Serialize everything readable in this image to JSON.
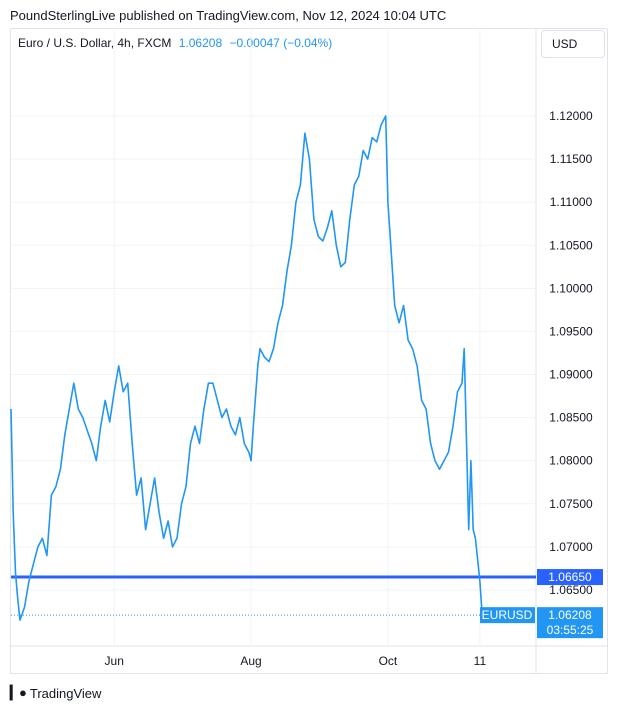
{
  "header": {
    "attribution": "PoundSterlingLive published on TradingView.com, Nov 12, 2024 10:04 UTC"
  },
  "legend": {
    "symbol": "Euro / U.S. Dollar, 4h, FXCM",
    "last": "1.06208",
    "change": "−0.00047 (−0.04%)"
  },
  "currency_button": {
    "label": "USD"
  },
  "footer": {
    "brand": "TradingView"
  },
  "colors": {
    "line": "#2196f3",
    "hline": "#2962ff",
    "grid": "#f0f3fa",
    "axis_text": "#131722"
  },
  "chart_data": {
    "type": "line",
    "symbol": "EURUSD",
    "title": "Euro / U.S. Dollar, 4h, FXCM",
    "ylim": [
      1.0585,
      1.1265
    ],
    "yticks": [
      "1.12000",
      "1.11500",
      "1.11000",
      "1.10500",
      "1.10000",
      "1.09500",
      "1.09000",
      "1.08500",
      "1.08000",
      "1.07500",
      "1.07000",
      "1.06500"
    ],
    "ytick_values": [
      1.12,
      1.115,
      1.11,
      1.105,
      1.1,
      1.095,
      1.09,
      1.085,
      1.08,
      1.075,
      1.07,
      1.065
    ],
    "xtick_labels": [
      {
        "label": "Jun",
        "date": "2024-06-01"
      },
      {
        "label": "Aug",
        "date": "2024-08-01"
      },
      {
        "label": "Oct",
        "date": "2024-10-01"
      },
      {
        "label": "11",
        "date": "2024-11-11"
      }
    ],
    "x_range": [
      "2024-04-16",
      "2024-12-06"
    ],
    "horizontal_line": {
      "value": 1.0665,
      "label": "1.06650"
    },
    "last_price": {
      "value": 1.06208,
      "label": "1.06208",
      "countdown": "03:55:25"
    },
    "series": [
      {
        "values": [
          [
            "2024-04-16",
            1.086
          ],
          [
            "2024-04-17",
            1.074
          ],
          [
            "2024-04-18",
            1.067
          ],
          [
            "2024-04-19",
            1.064
          ],
          [
            "2024-04-20",
            1.0615
          ],
          [
            "2024-04-22",
            1.063
          ],
          [
            "2024-04-24",
            1.066
          ],
          [
            "2024-04-26",
            1.068
          ],
          [
            "2024-04-28",
            1.07
          ],
          [
            "2024-04-30",
            1.071
          ],
          [
            "2024-05-02",
            1.069
          ],
          [
            "2024-05-04",
            1.076
          ],
          [
            "2024-05-06",
            1.077
          ],
          [
            "2024-05-08",
            1.079
          ],
          [
            "2024-05-10",
            1.083
          ],
          [
            "2024-05-12",
            1.086
          ],
          [
            "2024-05-14",
            1.089
          ],
          [
            "2024-05-16",
            1.086
          ],
          [
            "2024-05-18",
            1.085
          ],
          [
            "2024-05-20",
            1.0835
          ],
          [
            "2024-05-22",
            1.082
          ],
          [
            "2024-05-24",
            1.08
          ],
          [
            "2024-05-26",
            1.084
          ],
          [
            "2024-05-28",
            1.087
          ],
          [
            "2024-05-30",
            1.0845
          ],
          [
            "2024-06-01",
            1.088
          ],
          [
            "2024-06-03",
            1.091
          ],
          [
            "2024-06-05",
            1.088
          ],
          [
            "2024-06-07",
            1.089
          ],
          [
            "2024-06-09",
            1.082
          ],
          [
            "2024-06-11",
            1.076
          ],
          [
            "2024-06-13",
            1.078
          ],
          [
            "2024-06-15",
            1.072
          ],
          [
            "2024-06-17",
            1.075
          ],
          [
            "2024-06-19",
            1.078
          ],
          [
            "2024-06-21",
            1.074
          ],
          [
            "2024-06-23",
            1.071
          ],
          [
            "2024-06-25",
            1.073
          ],
          [
            "2024-06-27",
            1.07
          ],
          [
            "2024-06-29",
            1.071
          ],
          [
            "2024-07-01",
            1.075
          ],
          [
            "2024-07-03",
            1.077
          ],
          [
            "2024-07-05",
            1.082
          ],
          [
            "2024-07-07",
            1.084
          ],
          [
            "2024-07-09",
            1.082
          ],
          [
            "2024-07-11",
            1.086
          ],
          [
            "2024-07-13",
            1.089
          ],
          [
            "2024-07-15",
            1.089
          ],
          [
            "2024-07-17",
            1.087
          ],
          [
            "2024-07-19",
            1.085
          ],
          [
            "2024-07-21",
            1.086
          ],
          [
            "2024-07-23",
            1.084
          ],
          [
            "2024-07-25",
            1.083
          ],
          [
            "2024-07-27",
            1.085
          ],
          [
            "2024-07-29",
            1.082
          ],
          [
            "2024-07-31",
            1.081
          ],
          [
            "2024-08-01",
            1.08
          ],
          [
            "2024-08-02",
            1.084
          ],
          [
            "2024-08-04",
            1.091
          ],
          [
            "2024-08-05",
            1.093
          ],
          [
            "2024-08-07",
            1.092
          ],
          [
            "2024-08-09",
            1.0915
          ],
          [
            "2024-08-11",
            1.093
          ],
          [
            "2024-08-13",
            1.096
          ],
          [
            "2024-08-15",
            1.098
          ],
          [
            "2024-08-17",
            1.102
          ],
          [
            "2024-08-19",
            1.105
          ],
          [
            "2024-08-21",
            1.11
          ],
          [
            "2024-08-23",
            1.112
          ],
          [
            "2024-08-25",
            1.118
          ],
          [
            "2024-08-27",
            1.115
          ],
          [
            "2024-08-29",
            1.108
          ],
          [
            "2024-08-31",
            1.106
          ],
          [
            "2024-09-02",
            1.1055
          ],
          [
            "2024-09-04",
            1.107
          ],
          [
            "2024-09-06",
            1.109
          ],
          [
            "2024-09-08",
            1.105
          ],
          [
            "2024-09-10",
            1.1025
          ],
          [
            "2024-09-12",
            1.103
          ],
          [
            "2024-09-14",
            1.108
          ],
          [
            "2024-09-16",
            1.112
          ],
          [
            "2024-09-18",
            1.113
          ],
          [
            "2024-09-20",
            1.116
          ],
          [
            "2024-09-22",
            1.115
          ],
          [
            "2024-09-24",
            1.1175
          ],
          [
            "2024-09-26",
            1.117
          ],
          [
            "2024-09-28",
            1.119
          ],
          [
            "2024-09-30",
            1.12
          ],
          [
            "2024-10-01",
            1.11
          ],
          [
            "2024-10-02",
            1.106
          ],
          [
            "2024-10-04",
            1.098
          ],
          [
            "2024-10-06",
            1.096
          ],
          [
            "2024-10-08",
            1.098
          ],
          [
            "2024-10-10",
            1.094
          ],
          [
            "2024-10-12",
            1.093
          ],
          [
            "2024-10-14",
            1.091
          ],
          [
            "2024-10-16",
            1.087
          ],
          [
            "2024-10-18",
            1.086
          ],
          [
            "2024-10-20",
            1.082
          ],
          [
            "2024-10-22",
            1.08
          ],
          [
            "2024-10-24",
            1.079
          ],
          [
            "2024-10-26",
            1.08
          ],
          [
            "2024-10-28",
            1.081
          ],
          [
            "2024-10-30",
            1.084
          ],
          [
            "2024-11-01",
            1.088
          ],
          [
            "2024-11-03",
            1.089
          ],
          [
            "2024-11-04",
            1.093
          ],
          [
            "2024-11-06",
            1.072
          ],
          [
            "2024-11-07",
            1.08
          ],
          [
            "2024-11-08",
            1.072
          ],
          [
            "2024-11-09",
            1.071
          ],
          [
            "2024-11-11",
            1.066
          ],
          [
            "2024-11-12",
            1.0621
          ]
        ]
      }
    ]
  }
}
